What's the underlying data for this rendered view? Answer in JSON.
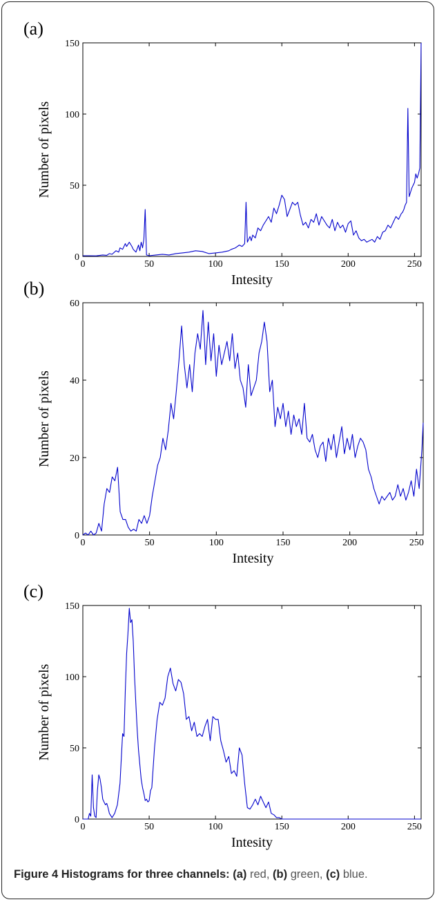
{
  "caption": {
    "bold_lead": "Figure 4 Histograms for three channels:",
    "a_label": "(a)",
    "a_text": " red, ",
    "b_label": "(b)",
    "b_text": " green, ",
    "c_label": "(c)",
    "c_text": " blue."
  },
  "line_color": "#0000cc",
  "chart_data": [
    {
      "type": "line",
      "panel_label": "(a)",
      "xlabel": "Intesity",
      "ylabel": "Number of pixels",
      "xlim": [
        0,
        255
      ],
      "ylim": [
        0,
        150
      ],
      "xticks": [
        0,
        50,
        100,
        150,
        200,
        250
      ],
      "yticks": [
        0,
        50,
        100,
        150
      ],
      "grid": false,
      "x": [
        0,
        5,
        10,
        15,
        18,
        20,
        22,
        25,
        27,
        28,
        30,
        32,
        33,
        35,
        37,
        38,
        40,
        42,
        43,
        44,
        45,
        46,
        47,
        48,
        50,
        55,
        60,
        65,
        70,
        75,
        80,
        85,
        90,
        95,
        100,
        105,
        110,
        112,
        115,
        118,
        120,
        122,
        123,
        124,
        125,
        126,
        127,
        128,
        130,
        132,
        134,
        136,
        138,
        140,
        142,
        144,
        146,
        148,
        150,
        152,
        154,
        156,
        158,
        160,
        162,
        164,
        166,
        168,
        170,
        172,
        174,
        176,
        178,
        180,
        182,
        184,
        186,
        188,
        190,
        192,
        194,
        196,
        198,
        200,
        202,
        204,
        206,
        208,
        210,
        212,
        214,
        216,
        218,
        220,
        222,
        224,
        226,
        228,
        230,
        232,
        234,
        236,
        238,
        240,
        241,
        242,
        243,
        244,
        245,
        246,
        248,
        250,
        251,
        252,
        253,
        254,
        255
      ],
      "values": [
        0.5,
        0.5,
        0.4,
        1,
        0.8,
        2,
        1.5,
        4,
        3,
        6,
        5,
        9,
        7,
        10,
        7,
        5,
        3,
        8,
        4,
        10,
        6,
        12,
        33,
        1,
        0.5,
        1,
        1.5,
        1,
        2,
        2.5,
        3,
        4,
        3.5,
        2,
        2.5,
        3,
        4,
        5,
        6,
        8,
        7,
        9,
        38,
        10,
        12,
        14,
        11,
        15,
        13,
        20,
        18,
        22,
        25,
        28,
        24,
        34,
        30,
        36,
        43,
        40,
        28,
        33,
        38,
        36,
        38,
        29,
        22,
        24,
        20,
        26,
        24,
        30,
        22,
        28,
        25,
        22,
        20,
        26,
        18,
        24,
        20,
        22,
        17,
        23,
        25,
        15,
        18,
        13,
        11,
        12,
        10,
        11,
        12,
        10,
        14,
        12,
        17,
        18,
        22,
        20,
        24,
        28,
        26,
        30,
        31,
        33,
        36,
        38,
        104,
        42,
        48,
        52,
        58,
        55,
        58,
        62,
        150
      ]
    },
    {
      "type": "line",
      "panel_label": "(b)",
      "xlabel": "Intesity",
      "ylabel": "Number of pixels",
      "xlim": [
        0,
        255
      ],
      "ylim": [
        0,
        60
      ],
      "xticks": [
        0,
        50,
        100,
        150,
        200,
        250
      ],
      "yticks": [
        0,
        20,
        40,
        60
      ],
      "grid": false,
      "x": [
        0,
        2,
        4,
        6,
        8,
        10,
        12,
        14,
        16,
        18,
        20,
        22,
        24,
        26,
        28,
        30,
        32,
        34,
        36,
        38,
        40,
        42,
        44,
        46,
        48,
        50,
        52,
        54,
        56,
        58,
        60,
        62,
        64,
        66,
        68,
        70,
        72,
        74,
        76,
        78,
        80,
        82,
        84,
        86,
        88,
        90,
        92,
        94,
        96,
        98,
        100,
        102,
        104,
        106,
        108,
        110,
        112,
        114,
        116,
        118,
        120,
        122,
        124,
        126,
        128,
        130,
        132,
        134,
        136,
        138,
        140,
        142,
        144,
        146,
        148,
        150,
        152,
        154,
        156,
        158,
        160,
        162,
        164,
        166,
        168,
        170,
        172,
        174,
        176,
        178,
        180,
        182,
        184,
        186,
        188,
        190,
        192,
        194,
        196,
        198,
        200,
        202,
        204,
        206,
        208,
        210,
        212,
        214,
        216,
        218,
        220,
        222,
        224,
        226,
        228,
        230,
        232,
        234,
        236,
        238,
        240,
        242,
        244,
        246,
        248,
        250,
        252,
        254,
        255
      ],
      "values": [
        0,
        0.5,
        0,
        1,
        0,
        0.5,
        3,
        1,
        8,
        12,
        11,
        15,
        14,
        17.5,
        6,
        4,
        4,
        2,
        1,
        1.5,
        1,
        4,
        3,
        5,
        3,
        5,
        10,
        14,
        18,
        20,
        25,
        22,
        27,
        34,
        30,
        37,
        45,
        54,
        44,
        38,
        44,
        37,
        47,
        52,
        48,
        58,
        44,
        55,
        45,
        52,
        41,
        49,
        44,
        47,
        50,
        45,
        52,
        43,
        47,
        40,
        38,
        33,
        44,
        36,
        38,
        40,
        47,
        50,
        55,
        50,
        37,
        40,
        28,
        33,
        30,
        34,
        28,
        32,
        26,
        31,
        28,
        30,
        26,
        34,
        25,
        24,
        26,
        22,
        20,
        23,
        24,
        19,
        25,
        22,
        26,
        20,
        24,
        28,
        21,
        25,
        22,
        26,
        20,
        23,
        25,
        24,
        22,
        17,
        15,
        12,
        10,
        8,
        10,
        9,
        10,
        11,
        9,
        10,
        13,
        10,
        12,
        9,
        11,
        14,
        10,
        17,
        12,
        22,
        29
      ]
    },
    {
      "type": "line",
      "panel_label": "(c)",
      "xlabel": "Intesity",
      "ylabel": "Number of pixels",
      "xlim": [
        0,
        255
      ],
      "ylim": [
        0,
        150
      ],
      "xticks": [
        0,
        50,
        100,
        150,
        200,
        250
      ],
      "yticks": [
        0,
        50,
        100,
        150
      ],
      "grid": false,
      "x": [
        0,
        4,
        5,
        6,
        7,
        8,
        9,
        10,
        11,
        12,
        13,
        14,
        15,
        16,
        17,
        18,
        19,
        20,
        22,
        24,
        26,
        28,
        30,
        31,
        32,
        33,
        34,
        35,
        36,
        37,
        38,
        39,
        40,
        41,
        42,
        43,
        44,
        45,
        46,
        47,
        48,
        49,
        50,
        51,
        52,
        54,
        56,
        58,
        60,
        62,
        64,
        66,
        68,
        70,
        72,
        74,
        76,
        78,
        80,
        82,
        84,
        86,
        88,
        90,
        92,
        94,
        96,
        98,
        100,
        102,
        104,
        106,
        108,
        110,
        112,
        114,
        116,
        118,
        120,
        122,
        124,
        126,
        128,
        130,
        132,
        134,
        136,
        138,
        140,
        142,
        144,
        146,
        148,
        150,
        152,
        156,
        160,
        180,
        200,
        220,
        240,
        255
      ],
      "values": [
        0,
        0,
        4,
        2,
        31,
        8,
        2,
        1,
        20,
        31,
        28,
        22,
        14,
        12,
        10,
        11,
        8,
        4,
        1,
        4,
        10,
        25,
        60,
        58,
        90,
        116,
        130,
        148,
        138,
        140,
        125,
        100,
        80,
        62,
        48,
        38,
        28,
        22,
        18,
        13,
        14,
        12,
        13,
        20,
        22,
        50,
        70,
        82,
        80,
        85,
        100,
        106,
        95,
        90,
        98,
        96,
        88,
        70,
        72,
        62,
        68,
        58,
        60,
        58,
        65,
        70,
        55,
        72,
        70,
        70,
        55,
        48,
        40,
        44,
        32,
        34,
        30,
        50,
        45,
        25,
        8,
        7,
        10,
        14,
        10,
        16,
        12,
        8,
        12,
        4,
        3,
        1,
        1,
        0,
        0,
        0,
        0,
        0,
        0,
        0,
        0,
        0
      ]
    }
  ]
}
